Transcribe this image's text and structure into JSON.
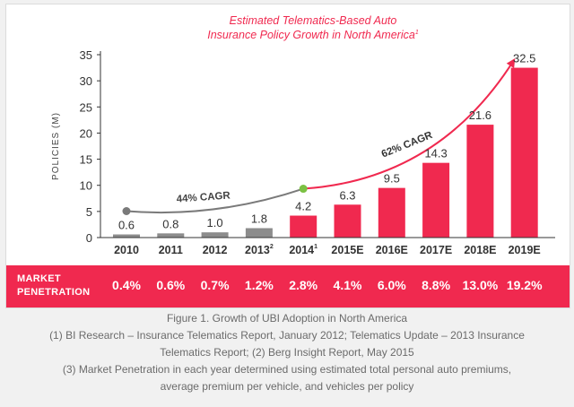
{
  "chart_data": {
    "type": "bar",
    "title": "Estimated Telematics-Based Auto Insurance Policy Growth in North America",
    "title_lines": [
      "Estimated Telematics-Based Auto",
      "Insurance Policy Growth in North America"
    ],
    "title_superscript": "1",
    "ylabel": "POLICIES (M)",
    "ylim": [
      0,
      35
    ],
    "yticks": [
      0,
      5,
      10,
      15,
      20,
      25,
      30,
      35
    ],
    "categories": [
      {
        "label": "2010",
        "sup": ""
      },
      {
        "label": "2011",
        "sup": ""
      },
      {
        "label": "2012",
        "sup": ""
      },
      {
        "label": "2013",
        "sup": "2"
      },
      {
        "label": "2014",
        "sup": "1"
      },
      {
        "label": "2015E",
        "sup": ""
      },
      {
        "label": "2016E",
        "sup": ""
      },
      {
        "label": "2017E",
        "sup": ""
      },
      {
        "label": "2018E",
        "sup": ""
      },
      {
        "label": "2019E",
        "sup": ""
      }
    ],
    "values": [
      0.6,
      0.8,
      1.0,
      1.8,
      4.2,
      6.3,
      9.5,
      14.3,
      21.6,
      32.5
    ],
    "value_labels": [
      "0.6",
      "0.8",
      "1.0",
      "1.8",
      "4.2",
      "6.3",
      "9.5",
      "14.3",
      "21.6",
      "32.5"
    ],
    "bar_colors": [
      "#8c8c8c",
      "#8c8c8c",
      "#8c8c8c",
      "#8c8c8c",
      "#f0294f",
      "#f0294f",
      "#f0294f",
      "#f0294f",
      "#f0294f",
      "#f0294f"
    ],
    "annotations": [
      {
        "text": "44% CAGR",
        "color": "#444444"
      },
      {
        "text": "62% CAGR",
        "color": "#333333"
      }
    ],
    "penetration": {
      "title_lines": [
        "MARKET",
        "PENETRATION"
      ],
      "values": [
        "0.4%",
        "0.6%",
        "0.7%",
        "1.2%",
        "2.8%",
        "4.1%",
        "6.0%",
        "8.8%",
        "13.0%",
        "19.2%"
      ]
    },
    "grid": false,
    "legend": "none"
  },
  "colors": {
    "accent": "#f0294f",
    "historic": "#8c8c8c",
    "trend_gray": "#7a7a7a",
    "trend_dot_green": "#7bc143",
    "axis_text": "#333333"
  },
  "caption": {
    "line1": "Figure 1. Growth of UBI Adoption in North America",
    "line2": "(1) BI Research – Insurance Telematics Report, January 2012; Telematics Update – 2013 Insurance",
    "line3": "Telematics Report; (2) Berg Insight Report, May 2015",
    "line4": "(3) Market Penetration in each year determined using estimated total personal auto premiums,",
    "line5": "average premium per vehicle, and vehicles per policy"
  }
}
